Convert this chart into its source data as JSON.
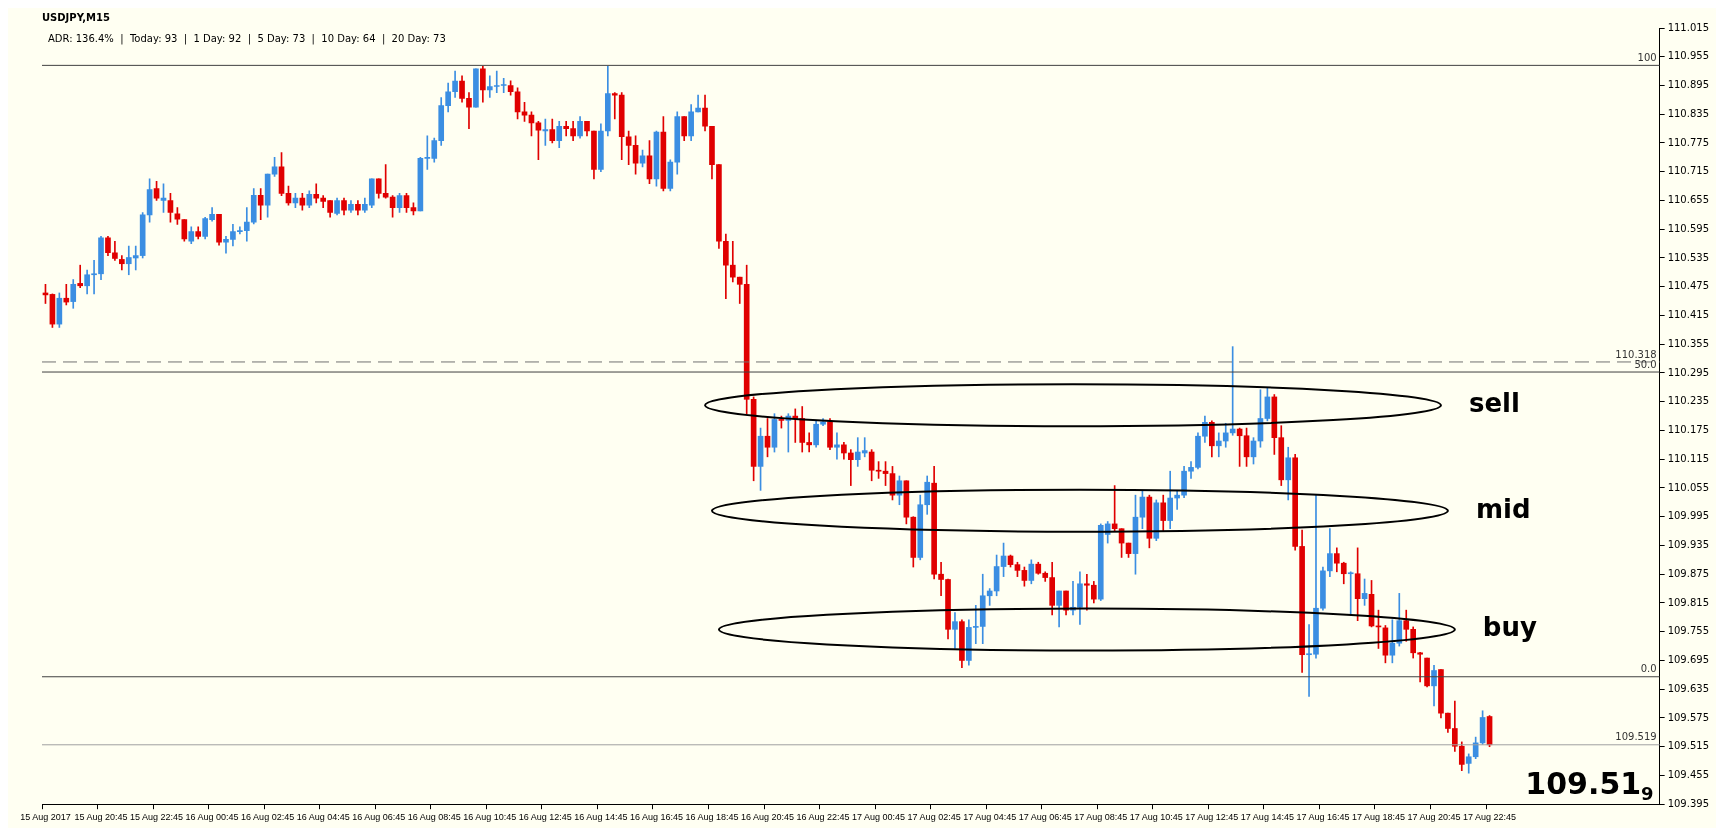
{
  "chart_data": {
    "type": "candlestick",
    "title": "USDJPY,M15",
    "categories": [
      "15 Aug 2017",
      null,
      null,
      null,
      null,
      null,
      null,
      null,
      "15 Aug 20:45",
      null,
      null,
      null,
      null,
      null,
      null,
      null,
      "15 Aug 22:45",
      null,
      null,
      null,
      null,
      null,
      null,
      null,
      "16 Aug 00:45",
      null,
      null,
      null,
      null,
      null,
      null,
      null,
      "16 Aug 02:45",
      null,
      null,
      null,
      null,
      null,
      null,
      null,
      "16 Aug 04:45",
      null,
      null,
      null,
      null,
      null,
      null,
      null,
      "16 Aug 06:45",
      null,
      null,
      null,
      null,
      null,
      null,
      null,
      "16 Aug 08:45",
      null,
      null,
      null,
      null,
      null,
      null,
      null,
      "16 Aug 10:45",
      null,
      null,
      null,
      null,
      null,
      null,
      null,
      "16 Aug 12:45",
      null,
      null,
      null,
      null,
      null,
      null,
      null,
      "16 Aug 14:45",
      null,
      null,
      null,
      null,
      null,
      null,
      null,
      "16 Aug 16:45",
      null,
      null,
      null,
      null,
      null,
      null,
      null,
      "16 Aug 18:45",
      null,
      null,
      null,
      null,
      null,
      null,
      null,
      "16 Aug 20:45",
      null,
      null,
      null,
      null,
      null,
      null,
      null,
      "16 Aug 22:45",
      null,
      null,
      null,
      null,
      null,
      null,
      null,
      "17 Aug 00:45",
      null,
      null,
      null,
      null,
      null,
      null,
      null,
      "17 Aug 02:45",
      null,
      null,
      null,
      null,
      null,
      null,
      null,
      "17 Aug 04:45",
      null,
      null,
      null,
      null,
      null,
      null,
      null,
      "17 Aug 06:45",
      null,
      null,
      null,
      null,
      null,
      null,
      null,
      "17 Aug 08:45",
      null,
      null,
      null,
      null,
      null,
      null,
      null,
      "17 Aug 10:45",
      null,
      null,
      null,
      null,
      null,
      null,
      null,
      "17 Aug 12:45",
      null,
      null,
      null,
      null,
      null,
      null,
      null,
      "17 Aug 14:45",
      null,
      null,
      null,
      null,
      null,
      null,
      null,
      "17 Aug 16:45",
      null,
      null,
      null,
      null,
      null,
      null,
      null,
      "17 Aug 18:45",
      null,
      null,
      null,
      null,
      null,
      null,
      null,
      "17 Aug 20:45",
      null,
      null,
      null,
      null,
      null,
      null,
      null,
      "17 Aug 22:45",
      null,
      null,
      null,
      null,
      null,
      null,
      null,
      null,
      null,
      null,
      null,
      null,
      null,
      null,
      null,
      null,
      null,
      null,
      null,
      null,
      null,
      null,
      null,
      null
    ],
    "ohlc": [
      [
        110.462,
        110.48,
        110.44,
        110.458
      ],
      [
        110.459,
        110.46,
        110.39,
        110.397
      ],
      [
        110.397,
        110.462,
        110.39,
        110.451
      ],
      [
        110.451,
        110.48,
        110.437,
        110.443
      ],
      [
        110.444,
        110.49,
        110.43,
        110.48
      ],
      [
        110.482,
        110.52,
        110.473,
        110.477
      ],
      [
        110.477,
        110.51,
        110.46,
        110.5
      ],
      [
        110.5,
        110.53,
        110.46,
        110.501
      ],
      [
        110.502,
        110.58,
        110.49,
        110.577
      ],
      [
        110.577,
        110.58,
        110.54,
        110.546
      ],
      [
        110.546,
        110.57,
        110.53,
        110.534
      ],
      [
        110.532,
        110.54,
        110.51,
        110.523
      ],
      [
        110.523,
        110.56,
        110.5,
        110.536
      ],
      [
        110.535,
        110.56,
        110.51,
        110.54
      ],
      [
        110.54,
        110.63,
        110.535,
        110.625
      ],
      [
        110.625,
        110.7,
        110.61,
        110.678
      ],
      [
        110.68,
        110.695,
        110.655,
        110.66
      ],
      [
        110.655,
        110.69,
        110.63,
        110.66
      ],
      [
        110.655,
        110.67,
        110.61,
        110.63
      ],
      [
        110.627,
        110.64,
        110.605,
        110.616
      ],
      [
        110.615,
        110.615,
        110.57,
        110.575
      ],
      [
        110.57,
        110.6,
        110.565,
        110.59
      ],
      [
        110.59,
        110.6,
        110.575,
        110.58
      ],
      [
        110.58,
        110.62,
        110.575,
        110.617
      ],
      [
        110.615,
        110.64,
        110.612,
        110.626
      ],
      [
        110.626,
        110.626,
        110.562,
        110.568
      ],
      [
        110.568,
        110.58,
        110.545,
        110.574
      ],
      [
        110.574,
        110.605,
        110.56,
        110.59
      ],
      [
        110.59,
        110.6,
        110.585,
        110.592
      ],
      [
        110.592,
        110.64,
        110.57,
        110.61
      ],
      [
        110.61,
        110.68,
        110.606,
        110.666
      ],
      [
        110.666,
        110.68,
        110.615,
        110.645
      ],
      [
        110.645,
        110.71,
        110.62,
        110.71
      ],
      [
        110.71,
        110.745,
        110.705,
        110.725
      ],
      [
        110.725,
        110.755,
        110.665,
        110.67
      ],
      [
        110.67,
        110.685,
        110.645,
        110.65
      ],
      [
        110.65,
        110.67,
        110.64,
        110.66
      ],
      [
        110.66,
        110.67,
        110.635,
        110.645
      ],
      [
        110.645,
        110.675,
        110.64,
        110.668
      ],
      [
        110.668,
        110.69,
        110.65,
        110.66
      ],
      [
        110.66,
        110.665,
        110.64,
        110.653
      ],
      [
        110.655,
        110.655,
        110.62,
        110.63
      ],
      [
        110.628,
        110.66,
        110.625,
        110.655
      ],
      [
        110.655,
        110.66,
        110.625,
        110.635
      ],
      [
        110.635,
        110.655,
        110.63,
        110.647
      ],
      [
        110.647,
        110.655,
        110.625,
        110.635
      ],
      [
        110.635,
        110.66,
        110.63,
        110.647
      ],
      [
        110.645,
        110.7,
        110.64,
        110.7
      ],
      [
        110.7,
        110.7,
        110.66,
        110.67
      ],
      [
        110.67,
        110.73,
        110.66,
        110.662
      ],
      [
        110.662,
        110.665,
        110.62,
        110.64
      ],
      [
        110.64,
        110.67,
        110.63,
        110.665
      ],
      [
        110.665,
        110.67,
        110.63,
        110.64
      ],
      [
        110.64,
        110.65,
        110.625,
        110.633
      ],
      [
        110.633,
        110.745,
        110.633,
        110.743
      ],
      [
        110.743,
        110.79,
        110.72,
        110.745
      ],
      [
        110.743,
        110.785,
        110.735,
        110.78
      ],
      [
        110.78,
        110.87,
        110.77,
        110.853
      ],
      [
        110.853,
        110.9,
        110.84,
        110.882
      ],
      [
        110.882,
        110.925,
        110.87,
        110.904
      ],
      [
        110.904,
        110.915,
        110.86,
        110.868
      ],
      [
        110.868,
        110.88,
        110.805,
        110.85
      ],
      [
        110.85,
        110.93,
        110.85,
        110.93
      ],
      [
        110.93,
        110.935,
        110.86,
        110.886
      ],
      [
        110.886,
        110.915,
        110.87,
        110.893
      ],
      [
        110.893,
        110.925,
        110.88,
        110.895
      ],
      [
        110.895,
        110.91,
        110.88,
        110.895
      ],
      [
        110.895,
        110.905,
        110.875,
        110.882
      ],
      [
        110.882,
        110.89,
        110.825,
        110.84
      ],
      [
        110.84,
        110.86,
        110.82,
        110.833
      ],
      [
        110.833,
        110.84,
        110.79,
        110.817
      ],
      [
        110.817,
        110.82,
        110.74,
        110.802
      ],
      [
        110.8,
        110.825,
        110.77,
        110.803
      ],
      [
        110.803,
        110.825,
        110.775,
        110.78
      ],
      [
        110.78,
        110.82,
        110.765,
        110.81
      ],
      [
        110.81,
        110.82,
        110.79,
        110.805
      ],
      [
        110.805,
        110.82,
        110.78,
        110.79
      ],
      [
        110.79,
        110.83,
        110.785,
        110.82
      ],
      [
        110.82,
        110.82,
        110.79,
        110.8
      ],
      [
        110.8,
        110.8,
        110.7,
        110.72
      ],
      [
        110.72,
        110.815,
        110.715,
        110.8
      ],
      [
        110.8,
        110.935,
        110.79,
        110.878
      ],
      [
        110.878,
        110.88,
        110.825,
        110.875
      ],
      [
        110.875,
        110.88,
        110.74,
        110.788
      ],
      [
        110.788,
        110.8,
        110.73,
        110.77
      ],
      [
        110.77,
        110.79,
        110.71,
        110.733
      ],
      [
        110.733,
        110.76,
        110.725,
        110.748
      ],
      [
        110.748,
        110.78,
        110.69,
        110.7
      ],
      [
        110.7,
        110.8,
        110.685,
        110.798
      ],
      [
        110.798,
        110.83,
        110.675,
        110.68
      ],
      [
        110.68,
        110.74,
        110.675,
        110.735
      ],
      [
        110.735,
        110.84,
        110.71,
        110.83
      ],
      [
        110.83,
        110.83,
        110.78,
        110.79
      ],
      [
        110.79,
        110.855,
        110.78,
        110.84
      ],
      [
        110.84,
        110.875,
        110.84,
        110.848
      ],
      [
        110.848,
        110.875,
        110.8,
        110.81
      ],
      [
        110.81,
        110.81,
        110.7,
        110.73
      ],
      [
        110.73,
        110.73,
        110.555,
        110.57
      ],
      [
        110.57,
        110.585,
        110.45,
        110.52
      ],
      [
        110.52,
        110.57,
        110.485,
        110.495
      ],
      [
        110.495,
        110.495,
        110.44,
        110.48
      ],
      [
        110.48,
        110.52,
        110.21,
        110.24
      ],
      [
        110.24,
        110.245,
        110.07,
        110.1
      ],
      [
        110.1,
        110.18,
        110.05,
        110.163
      ],
      [
        110.163,
        110.2,
        110.12,
        110.14
      ],
      [
        110.14,
        110.21,
        110.13,
        110.198
      ],
      [
        110.198,
        110.205,
        110.18,
        110.196
      ],
      [
        110.196,
        110.21,
        110.13,
        110.205
      ],
      [
        110.205,
        110.22,
        110.15,
        110.2
      ],
      [
        110.2,
        110.225,
        110.13,
        110.15
      ],
      [
        110.15,
        110.17,
        110.13,
        110.145
      ],
      [
        110.145,
        110.195,
        110.14,
        110.188
      ],
      [
        110.188,
        110.2,
        110.185,
        110.193
      ],
      [
        110.193,
        110.2,
        110.135,
        110.14
      ],
      [
        110.14,
        110.17,
        110.115,
        110.145
      ],
      [
        110.145,
        110.15,
        110.115,
        110.128
      ],
      [
        110.128,
        110.135,
        110.06,
        110.114
      ],
      [
        110.114,
        110.16,
        110.1,
        110.13
      ],
      [
        110.128,
        110.16,
        110.12,
        110.133
      ],
      [
        110.13,
        110.135,
        110.07,
        110.092
      ],
      [
        110.092,
        110.11,
        110.075,
        110.09
      ],
      [
        110.09,
        110.11,
        110.06,
        110.085
      ],
      [
        110.085,
        110.1,
        110.03,
        110.04
      ],
      [
        110.04,
        110.08,
        110.02,
        110.07
      ],
      [
        110.07,
        110.07,
        109.98,
        109.994
      ],
      [
        109.994,
        109.995,
        109.89,
        109.91
      ],
      [
        109.91,
        110.04,
        109.905,
        110.02
      ],
      [
        110.02,
        110.08,
        110.0,
        110.067
      ],
      [
        110.065,
        110.1,
        109.865,
        109.875
      ],
      [
        109.875,
        109.9,
        109.83,
        109.864
      ],
      [
        109.864,
        109.865,
        109.74,
        109.76
      ],
      [
        109.76,
        109.795,
        109.72,
        109.776
      ],
      [
        109.776,
        109.78,
        109.68,
        109.695
      ],
      [
        109.695,
        109.78,
        109.685,
        109.764
      ],
      [
        109.764,
        109.81,
        109.73,
        109.766
      ],
      [
        109.766,
        109.875,
        109.73,
        109.83
      ],
      [
        109.83,
        109.845,
        109.81,
        109.84
      ],
      [
        109.84,
        109.915,
        109.83,
        109.891
      ],
      [
        109.891,
        109.94,
        109.87,
        109.913
      ],
      [
        109.913,
        109.915,
        109.89,
        109.895
      ],
      [
        109.895,
        109.9,
        109.87,
        109.883
      ],
      [
        109.883,
        109.89,
        109.85,
        109.862
      ],
      [
        109.862,
        109.905,
        109.855,
        109.896
      ],
      [
        109.896,
        109.9,
        109.875,
        109.877
      ],
      [
        109.877,
        109.88,
        109.86,
        109.868
      ],
      [
        109.868,
        109.9,
        109.79,
        109.81
      ],
      [
        109.81,
        109.84,
        109.765,
        109.84
      ],
      [
        109.84,
        109.84,
        109.79,
        109.8
      ],
      [
        109.8,
        109.86,
        109.79,
        109.806
      ],
      [
        109.806,
        109.88,
        109.77,
        109.855
      ],
      [
        109.855,
        109.875,
        109.8,
        109.852
      ],
      [
        109.852,
        109.86,
        109.815,
        109.823
      ],
      [
        109.823,
        109.98,
        109.82,
        109.977
      ],
      [
        109.958,
        109.985,
        109.94,
        109.98
      ],
      [
        109.98,
        110.06,
        109.965,
        109.97
      ],
      [
        109.97,
        109.97,
        109.91,
        109.94
      ],
      [
        109.94,
        109.94,
        109.91,
        109.918
      ],
      [
        109.918,
        110.04,
        109.875,
        109.994
      ],
      [
        109.994,
        110.05,
        109.97,
        110.036
      ],
      [
        110.036,
        110.04,
        109.93,
        109.95
      ],
      [
        109.95,
        110.03,
        109.945,
        110.024
      ],
      [
        110.024,
        110.04,
        109.965,
        109.987
      ],
      [
        109.987,
        110.09,
        109.97,
        110.034
      ],
      [
        110.034,
        110.05,
        110.01,
        110.04
      ],
      [
        110.04,
        110.1,
        110.035,
        110.09
      ],
      [
        110.09,
        110.11,
        110.075,
        110.098
      ],
      [
        110.098,
        110.17,
        110.095,
        110.163
      ],
      [
        110.163,
        110.205,
        110.15,
        110.192
      ],
      [
        110.192,
        110.195,
        110.12,
        110.143
      ],
      [
        110.143,
        110.17,
        110.12,
        110.153
      ],
      [
        110.153,
        110.19,
        110.14,
        110.17
      ],
      [
        110.17,
        110.35,
        110.165,
        110.178
      ],
      [
        110.178,
        110.18,
        110.1,
        110.164
      ],
      [
        110.164,
        110.18,
        110.1,
        110.12
      ],
      [
        110.12,
        110.16,
        110.105,
        110.153
      ],
      [
        110.153,
        110.26,
        110.14,
        110.2
      ],
      [
        110.2,
        110.265,
        110.195,
        110.245
      ],
      [
        110.245,
        110.25,
        110.125,
        110.16
      ],
      [
        110.16,
        110.185,
        110.06,
        110.072
      ],
      [
        110.072,
        110.14,
        110.03,
        110.118
      ],
      [
        110.118,
        110.125,
        109.925,
        109.933
      ],
      [
        109.933,
        109.967,
        109.67,
        109.707
      ],
      [
        109.707,
        109.77,
        109.62,
        109.709
      ],
      [
        109.708,
        110.04,
        109.7,
        109.804
      ],
      [
        109.804,
        109.89,
        109.8,
        109.882
      ],
      [
        109.882,
        109.97,
        109.87,
        109.918
      ],
      [
        109.918,
        109.93,
        109.88,
        109.898
      ],
      [
        109.898,
        109.9,
        109.855,
        109.876
      ],
      [
        109.876,
        109.88,
        109.79,
        109.878
      ],
      [
        109.876,
        109.93,
        109.778,
        109.824
      ],
      [
        109.824,
        109.865,
        109.81,
        109.835
      ],
      [
        109.833,
        109.862,
        109.765,
        109.767
      ],
      [
        109.767,
        109.8,
        109.72,
        109.765
      ],
      [
        109.763,
        109.768,
        109.69,
        109.706
      ],
      [
        109.706,
        109.78,
        109.69,
        109.731
      ],
      [
        109.731,
        109.835,
        109.725,
        109.778
      ],
      [
        109.778,
        109.8,
        109.735,
        109.76
      ],
      [
        109.76,
        109.765,
        109.7,
        109.711
      ],
      [
        109.711,
        109.712,
        109.65,
        109.708
      ],
      [
        109.7,
        109.7,
        109.64,
        109.642
      ],
      [
        109.642,
        109.685,
        109.6,
        109.674
      ],
      [
        109.676,
        109.676,
        109.575,
        109.585
      ],
      [
        109.585,
        109.585,
        109.545,
        109.553
      ],
      [
        109.553,
        109.61,
        109.505,
        109.516
      ],
      [
        109.516,
        109.525,
        109.465,
        109.478
      ],
      [
        109.48,
        109.5,
        109.46,
        109.494
      ],
      [
        109.494,
        109.535,
        109.49,
        109.523
      ],
      [
        109.523,
        109.59,
        109.52,
        109.576
      ],
      [
        109.578,
        109.58,
        109.515,
        109.519
      ],
      null,
      null,
      null,
      null,
      null,
      null,
      null,
      null,
      null,
      null,
      null,
      null,
      null,
      null,
      null,
      null,
      null,
      null,
      null,
      null,
      null,
      null,
      null,
      null
    ],
    "colors": [
      "#e00000",
      "#e00000",
      "#3b8ee2",
      "#e00000",
      "#3b8ee2",
      "#e00000",
      "#3b8ee2",
      "#3b8ee2",
      "#3b8ee2",
      "#e00000",
      "#e00000",
      "#e00000",
      "#3b8ee2",
      "#3b8ee2",
      "#3b8ee2",
      "#3b8ee2",
      "#e00000",
      "#3b8ee2",
      "#e00000",
      "#e00000",
      "#e00000",
      "#3b8ee2",
      "#e00000",
      "#3b8ee2",
      "#3b8ee2",
      "#e00000",
      "#3b8ee2",
      "#3b8ee2",
      "#3b8ee2",
      "#3b8ee2",
      "#3b8ee2",
      "#e00000",
      "#3b8ee2",
      "#3b8ee2",
      "#e00000",
      "#e00000",
      "#3b8ee2",
      "#e00000",
      "#3b8ee2",
      "#e00000",
      "#e00000",
      "#e00000",
      "#3b8ee2",
      "#e00000",
      "#3b8ee2",
      "#e00000",
      "#3b8ee2",
      "#3b8ee2",
      "#e00000",
      "#e00000",
      "#e00000",
      "#3b8ee2",
      "#e00000",
      "#e00000",
      "#3b8ee2",
      "#3b8ee2",
      "#3b8ee2",
      "#3b8ee2",
      "#3b8ee2",
      "#3b8ee2",
      "#e00000",
      "#e00000",
      "#3b8ee2",
      "#e00000",
      "#3b8ee2",
      "#3b8ee2",
      "#3b8ee2",
      "#e00000",
      "#e00000",
      "#e00000",
      "#e00000",
      "#e00000",
      "#3b8ee2",
      "#e00000",
      "#3b8ee2",
      "#e00000",
      "#e00000",
      "#3b8ee2",
      "#e00000",
      "#e00000",
      "#3b8ee2",
      "#3b8ee2",
      "#e00000",
      "#e00000",
      "#e00000",
      "#e00000",
      "#3b8ee2",
      "#e00000",
      "#3b8ee2",
      "#e00000",
      "#3b8ee2",
      "#3b8ee2",
      "#e00000",
      "#3b8ee2",
      "#3b8ee2",
      "#e00000",
      "#e00000",
      "#e00000",
      "#e00000",
      "#e00000",
      "#e00000",
      "#e00000",
      "#e00000",
      "#3b8ee2",
      "#e00000",
      "#3b8ee2",
      "#e00000",
      "#3b8ee2",
      "#e00000",
      "#e00000",
      "#e00000",
      "#3b8ee2",
      "#3b8ee2",
      "#e00000",
      "#3b8ee2",
      "#e00000",
      "#e00000",
      "#3b8ee2",
      "#3b8ee2",
      "#e00000",
      "#e00000",
      "#e00000",
      "#e00000",
      "#3b8ee2",
      "#e00000",
      "#e00000",
      "#3b8ee2",
      "#3b8ee2",
      "#e00000",
      "#e00000",
      "#e00000",
      "#3b8ee2",
      "#e00000",
      "#3b8ee2",
      "#3b8ee2",
      "#3b8ee2",
      "#3b8ee2",
      "#3b8ee2",
      "#3b8ee2",
      "#e00000",
      "#e00000",
      "#e00000",
      "#3b8ee2",
      "#e00000",
      "#e00000",
      "#e00000",
      "#3b8ee2",
      "#e00000",
      "#3b8ee2",
      "#3b8ee2",
      "#e00000",
      "#e00000",
      "#3b8ee2",
      "#3b8ee2",
      "#e00000",
      "#e00000",
      "#e00000",
      "#3b8ee2",
      "#3b8ee2",
      "#e00000",
      "#3b8ee2",
      "#e00000",
      "#3b8ee2",
      "#3b8ee2",
      "#3b8ee2",
      "#3b8ee2",
      "#3b8ee2",
      "#3b8ee2",
      "#e00000",
      "#3b8ee2",
      "#3b8ee2",
      "#3b8ee2",
      "#e00000",
      "#e00000",
      "#3b8ee2",
      "#3b8ee2",
      "#3b8ee2",
      "#e00000",
      "#e00000",
      "#3b8ee2",
      "#e00000",
      "#e00000",
      "#3b8ee2",
      "#3b8ee2",
      "#3b8ee2",
      "#3b8ee2",
      "#e00000",
      "#e00000",
      "#3b8ee2",
      "#e00000",
      "#3b8ee2",
      "#e00000",
      "#e00000",
      "#e00000",
      "#3b8ee2",
      "#3b8ee2",
      "#e00000",
      "#e00000",
      "#e00000",
      "#e00000",
      "#3b8ee2",
      "#e00000",
      "#e00000",
      "#e00000",
      "#e00000",
      "#3b8ee2",
      "#3b8ee2",
      "#3b8ee2",
      "#e00000",
      null,
      null,
      null,
      null,
      null,
      null,
      null,
      null,
      null,
      null,
      null,
      null,
      null,
      null,
      null,
      null,
      null,
      null,
      null,
      null,
      null,
      null,
      null,
      null
    ],
    "ylim": [
      109.395,
      111.015
    ],
    "yticks": [
      109.395,
      109.455,
      109.515,
      109.575,
      109.635,
      109.695,
      109.755,
      109.815,
      109.875,
      109.935,
      109.995,
      110.055,
      110.115,
      110.175,
      110.235,
      110.295,
      110.355,
      110.415,
      110.475,
      110.535,
      110.595,
      110.655,
      110.715,
      110.775,
      110.835,
      110.895,
      110.955,
      111.015
    ],
    "ref_lines": [
      {
        "axis": "y",
        "value": 110.937,
        "color": "#404040",
        "line_style": "solid"
      },
      {
        "axis": "y",
        "value": 110.318,
        "label": "110.318",
        "color": "#707070",
        "line_style": "dashed"
      },
      {
        "axis": "y",
        "value": 110.297,
        "color": "#404040",
        "line_style": "solid"
      },
      {
        "axis": "y",
        "value": 109.661,
        "color": "#404040",
        "line_style": "solid"
      },
      {
        "axis": "y",
        "value": 109.519,
        "label": "109.519",
        "color": "#a0a0a0",
        "line_style": "solid"
      }
    ],
    "annotations": [
      "ADR: 136.4%  |  Today: 93  |  1 Day: 92  |  5 Day: 73  |  10 Day: 64  |  20 Day: 73",
      "109.51$_{9}$",
      {
        "text": "100",
        "y": 110.937
      },
      {
        "text": "50.0",
        "y": 110.297
      },
      {
        "text": "0.0",
        "y": 109.661
      },
      "sell",
      "mid",
      "buy"
    ],
    "grid": false,
    "legend": false
  }
}
